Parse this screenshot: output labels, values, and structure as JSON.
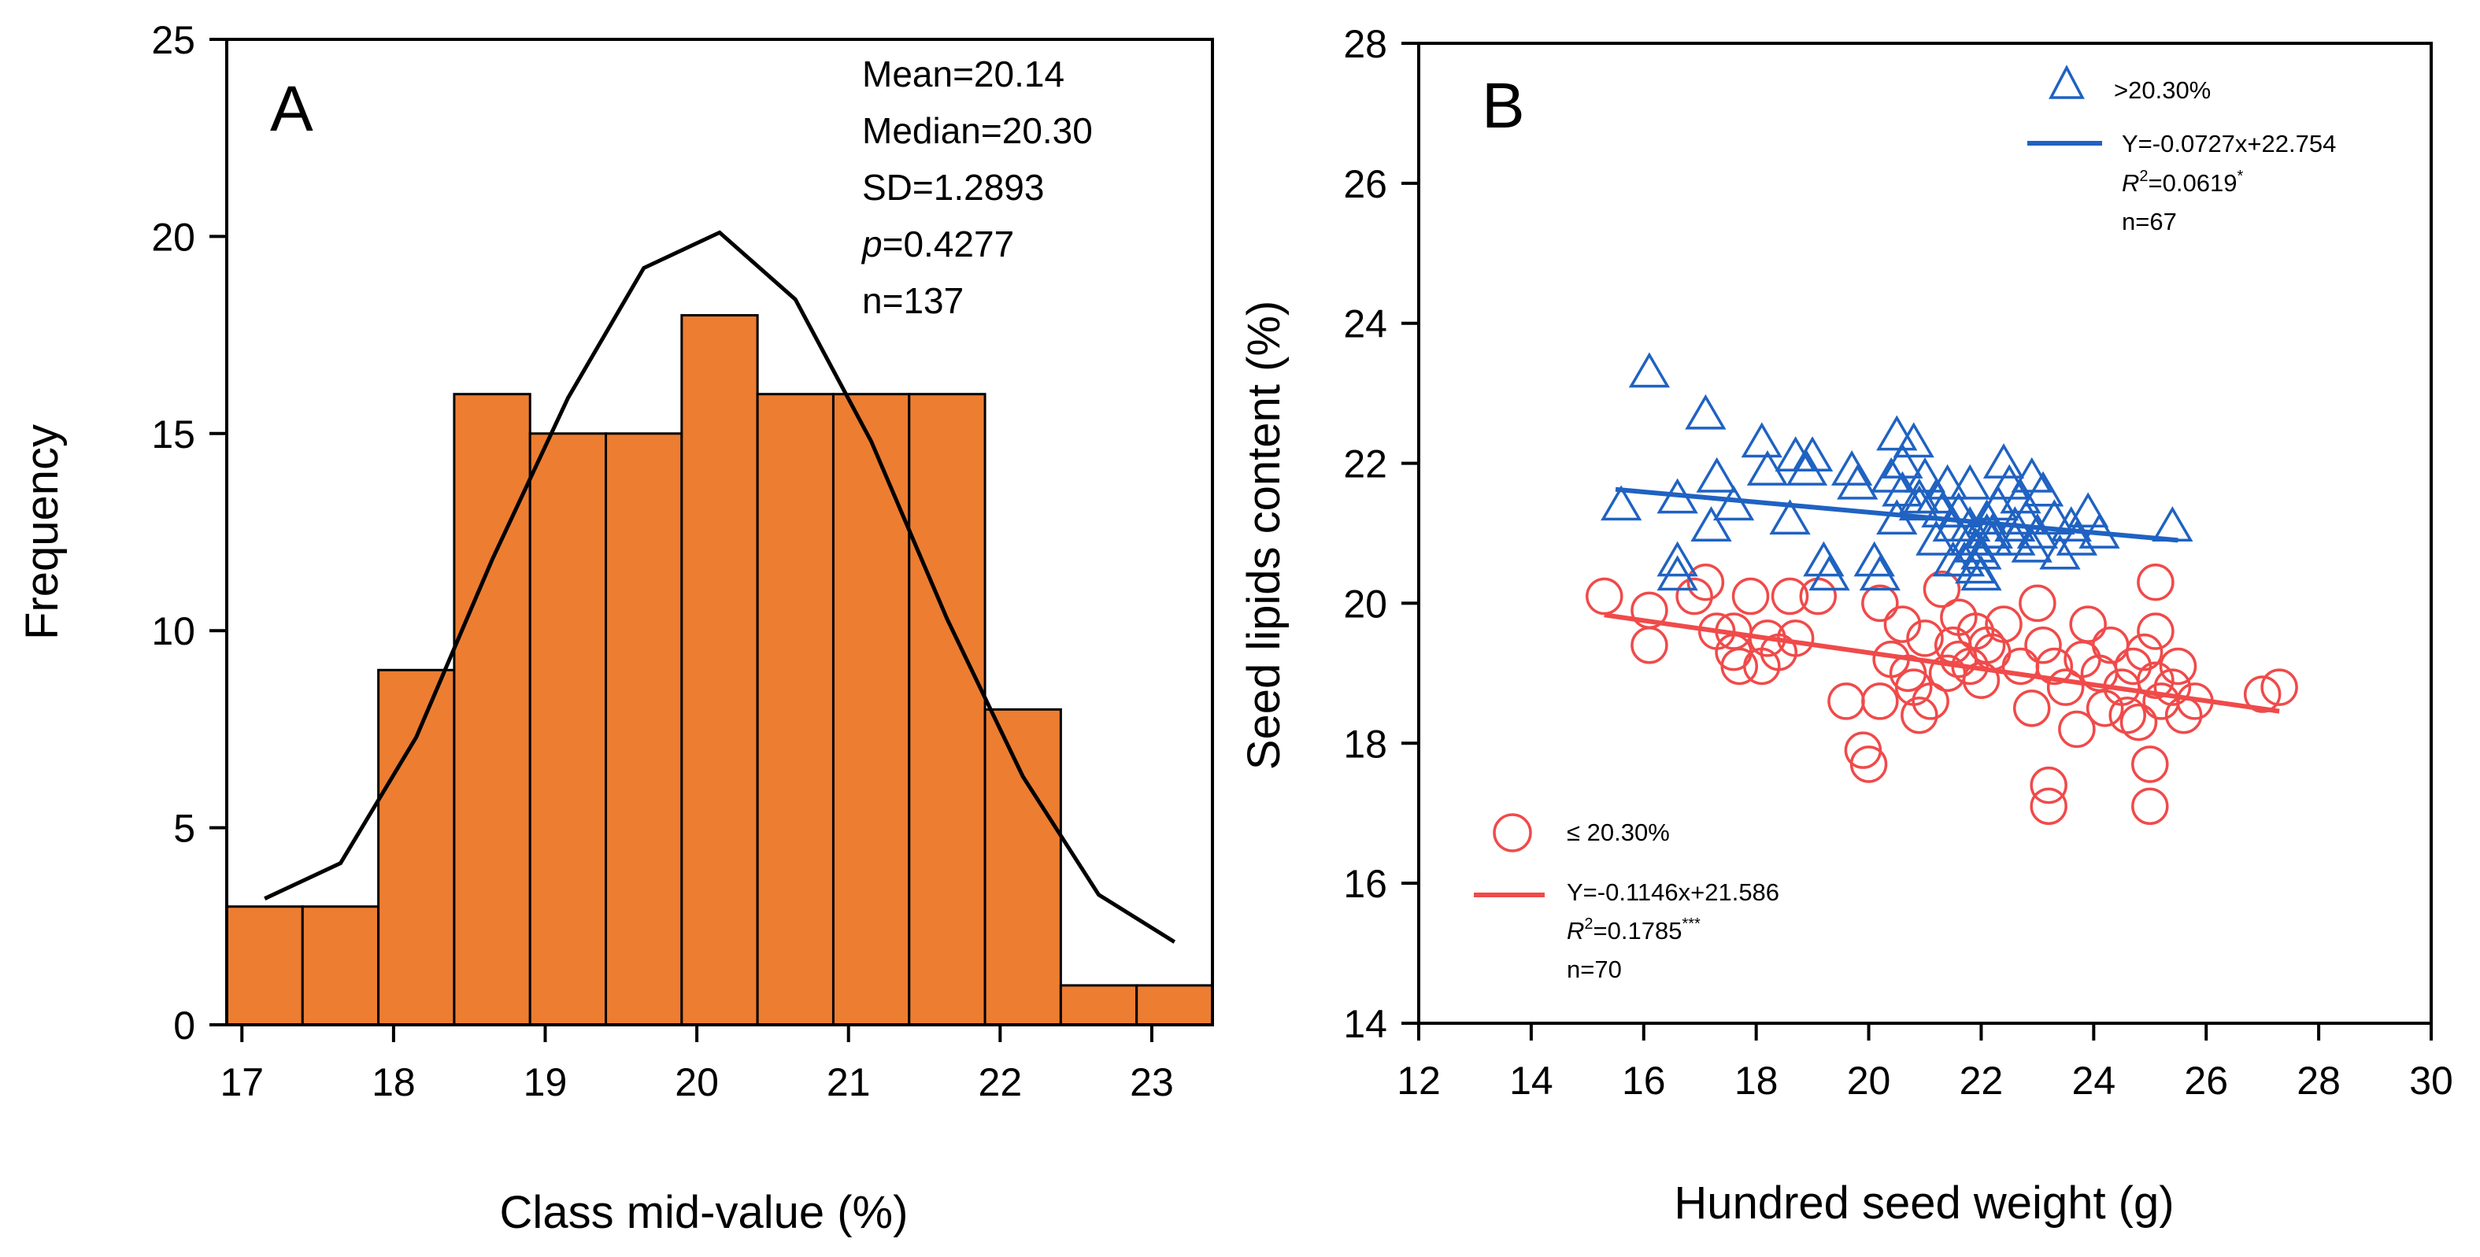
{
  "chart_data": [
    {
      "panel": "A",
      "type": "bar",
      "subtype": "histogram",
      "ylabel": "Frequency",
      "xlabel": "Class mid-value (%)",
      "xlim": [
        16.9,
        23.4
      ],
      "ylim": [
        0,
        25
      ],
      "xticks": [
        "17",
        "18",
        "19",
        "20",
        "21",
        "22",
        "23"
      ],
      "yticks": [
        "0",
        "5",
        "10",
        "15",
        "20",
        "25"
      ],
      "bins": [
        {
          "start": 16.9,
          "end": 17.4,
          "value": 3
        },
        {
          "start": 17.4,
          "end": 17.9,
          "value": 3
        },
        {
          "start": 17.9,
          "end": 18.4,
          "value": 9
        },
        {
          "start": 18.4,
          "end": 18.9,
          "value": 16
        },
        {
          "start": 18.9,
          "end": 19.4,
          "value": 15
        },
        {
          "start": 19.4,
          "end": 19.9,
          "value": 15
        },
        {
          "start": 19.9,
          "end": 20.4,
          "value": 18
        },
        {
          "start": 20.4,
          "end": 20.9,
          "value": 16
        },
        {
          "start": 20.9,
          "end": 21.4,
          "value": 16
        },
        {
          "start": 21.4,
          "end": 21.9,
          "value": 16
        },
        {
          "start": 21.9,
          "end": 22.4,
          "value": 8
        },
        {
          "start": 22.4,
          "end": 22.9,
          "value": 1
        },
        {
          "start": 22.9,
          "end": 23.4,
          "value": 1
        }
      ],
      "normal_curve": {
        "x": [
          17.15,
          17.65,
          18.15,
          18.65,
          19.15,
          19.65,
          20.15,
          20.65,
          21.15,
          21.65,
          22.15,
          22.65,
          23.15
        ],
        "y": [
          3.2,
          4.1,
          7.3,
          11.8,
          15.9,
          19.2,
          20.1,
          18.4,
          14.8,
          10.3,
          6.3,
          3.3,
          2.1
        ]
      },
      "stats": {
        "mean": "Mean=20.14",
        "median": "Median=20.30",
        "sd": "SD=1.2893",
        "p_symbol": "p",
        "p_value": "=0.4277",
        "n": "n=137"
      },
      "colors": {
        "bar": "#ED7D31",
        "bar_edge": "#000000",
        "curve": "#000000"
      }
    },
    {
      "panel": "B",
      "type": "scatter",
      "ylabel": "Seed lipids content (%)",
      "xlabel": "Hundred seed weight (g)",
      "xlim": [
        12,
        30
      ],
      "ylim": [
        14,
        28
      ],
      "xticks": [
        "12",
        "14",
        "16",
        "18",
        "20",
        "22",
        "24",
        "26",
        "28",
        "30"
      ],
      "yticks": [
        "14",
        "16",
        "18",
        "20",
        "22",
        "24",
        "26",
        "28"
      ],
      "series": [
        {
          "name": ">20.30%",
          "marker": "triangle",
          "color": "#1F62C2",
          "equation": "Y=-0.0727x+22.754",
          "r2_label": "R",
          "r2_sup": "2",
          "r2_value": "=0.0619",
          "r2_sig": "*",
          "n": "n=67",
          "fit": {
            "x": [
              15.5,
              25.5
            ],
            "y": [
              21.627,
              20.9
            ]
          },
          "points": [
            [
              16.1,
              23.3
            ],
            [
              17.1,
              22.7
            ],
            [
              15.6,
              21.4
            ],
            [
              16.6,
              21.5
            ],
            [
              16.6,
              20.6
            ],
            [
              16.6,
              20.4
            ],
            [
              17.2,
              21.1
            ],
            [
              17.3,
              21.8
            ],
            [
              17.6,
              21.4
            ],
            [
              18.1,
              22.3
            ],
            [
              18.2,
              21.9
            ],
            [
              18.7,
              22.1
            ],
            [
              18.9,
              21.9
            ],
            [
              19.0,
              22.1
            ],
            [
              18.6,
              21.2
            ],
            [
              19.2,
              20.6
            ],
            [
              19.3,
              20.4
            ],
            [
              19.7,
              21.9
            ],
            [
              20.1,
              20.6
            ],
            [
              20.2,
              20.4
            ],
            [
              20.4,
              21.8
            ],
            [
              20.5,
              22.4
            ],
            [
              20.6,
              22.0
            ],
            [
              20.6,
              21.6
            ],
            [
              20.8,
              22.3
            ],
            [
              20.9,
              21.5
            ],
            [
              21.0,
              21.8
            ],
            [
              21.4,
              21.7
            ],
            [
              21.5,
              20.6
            ],
            [
              21.6,
              21.3
            ],
            [
              21.8,
              21.1
            ],
            [
              21.9,
              20.8
            ],
            [
              21.9,
              20.5
            ],
            [
              22.0,
              20.7
            ],
            [
              22.1,
              21.0
            ],
            [
              22.2,
              20.9
            ],
            [
              22.3,
              21.4
            ],
            [
              22.4,
              22.0
            ],
            [
              22.5,
              21.7
            ],
            [
              22.7,
              21.5
            ],
            [
              22.9,
              21.8
            ],
            [
              22.9,
              20.8
            ],
            [
              23.1,
              21.6
            ],
            [
              23.3,
              21.2
            ],
            [
              23.4,
              20.7
            ],
            [
              23.7,
              20.9
            ],
            [
              23.9,
              21.3
            ],
            [
              24.1,
              21.0
            ],
            [
              25.4,
              21.1
            ],
            [
              21.8,
              21.7
            ],
            [
              21.7,
              20.6
            ],
            [
              21.8,
              20.9
            ],
            [
              22.0,
              20.4
            ],
            [
              21.5,
              21.1
            ],
            [
              22.6,
              20.9
            ],
            [
              20.9,
              21.4
            ],
            [
              19.8,
              21.7
            ],
            [
              21.2,
              20.9
            ],
            [
              20.5,
              21.2
            ],
            [
              21.2,
              21.5
            ],
            [
              21.3,
              21.3
            ],
            [
              22.1,
              21.2
            ],
            [
              22.8,
              21.2
            ],
            [
              23.0,
              21.0
            ],
            [
              22.6,
              21.1
            ],
            [
              23.6,
              21.1
            ],
            [
              22.2,
              21.0
            ]
          ]
        },
        {
          "name": "≤ 20.30%",
          "marker": "circle",
          "color": "#F04A4A",
          "equation": "Y=-0.1146x+21.586",
          "r2_label": "R",
          "r2_sup": "2",
          "r2_value": "=0.1785",
          "r2_sig": "***",
          "n": "n=70",
          "fit": {
            "x": [
              15.3,
              27.3
            ],
            "y": [
              19.833,
              18.457
            ]
          },
          "points": [
            [
              15.3,
              20.1
            ],
            [
              16.1,
              19.4
            ],
            [
              16.1,
              19.9
            ],
            [
              16.9,
              20.1
            ],
            [
              17.1,
              20.3
            ],
            [
              17.3,
              19.6
            ],
            [
              17.6,
              19.3
            ],
            [
              17.6,
              19.6
            ],
            [
              17.7,
              19.1
            ],
            [
              17.9,
              20.1
            ],
            [
              18.1,
              19.1
            ],
            [
              18.2,
              19.5
            ],
            [
              18.4,
              19.3
            ],
            [
              18.6,
              20.1
            ],
            [
              18.7,
              19.5
            ],
            [
              19.1,
              20.1
            ],
            [
              19.6,
              18.6
            ],
            [
              19.9,
              17.9
            ],
            [
              20.0,
              17.7
            ],
            [
              20.2,
              18.6
            ],
            [
              20.2,
              20.0
            ],
            [
              20.4,
              19.2
            ],
            [
              20.6,
              19.7
            ],
            [
              20.8,
              18.8
            ],
            [
              20.9,
              18.4
            ],
            [
              21.0,
              19.5
            ],
            [
              21.1,
              18.6
            ],
            [
              21.3,
              20.2
            ],
            [
              21.4,
              19.0
            ],
            [
              21.5,
              19.4
            ],
            [
              21.6,
              19.8
            ],
            [
              21.8,
              19.1
            ],
            [
              21.9,
              19.6
            ],
            [
              22.0,
              18.9
            ],
            [
              22.1,
              19.4
            ],
            [
              22.4,
              19.7
            ],
            [
              22.7,
              19.1
            ],
            [
              22.9,
              18.5
            ],
            [
              23.0,
              20.0
            ],
            [
              23.1,
              19.4
            ],
            [
              23.2,
              17.4
            ],
            [
              23.2,
              17.1
            ],
            [
              23.3,
              19.1
            ],
            [
              23.5,
              18.8
            ],
            [
              23.7,
              18.2
            ],
            [
              23.8,
              19.2
            ],
            [
              23.9,
              19.7
            ],
            [
              24.1,
              19.0
            ],
            [
              24.2,
              18.5
            ],
            [
              24.3,
              19.4
            ],
            [
              24.5,
              18.8
            ],
            [
              24.6,
              18.4
            ],
            [
              24.7,
              19.1
            ],
            [
              24.8,
              18.3
            ],
            [
              24.9,
              19.3
            ],
            [
              25.0,
              17.7
            ],
            [
              25.0,
              17.1
            ],
            [
              25.1,
              18.9
            ],
            [
              25.1,
              19.6
            ],
            [
              25.1,
              20.3
            ],
            [
              25.2,
              18.6
            ],
            [
              25.4,
              18.8
            ],
            [
              25.5,
              19.1
            ],
            [
              25.6,
              18.4
            ],
            [
              25.8,
              18.6
            ],
            [
              27.0,
              18.7
            ],
            [
              27.3,
              18.8
            ],
            [
              20.7,
              19.0
            ],
            [
              21.6,
              19.2
            ],
            [
              22.2,
              19.3
            ]
          ]
        }
      ]
    }
  ]
}
